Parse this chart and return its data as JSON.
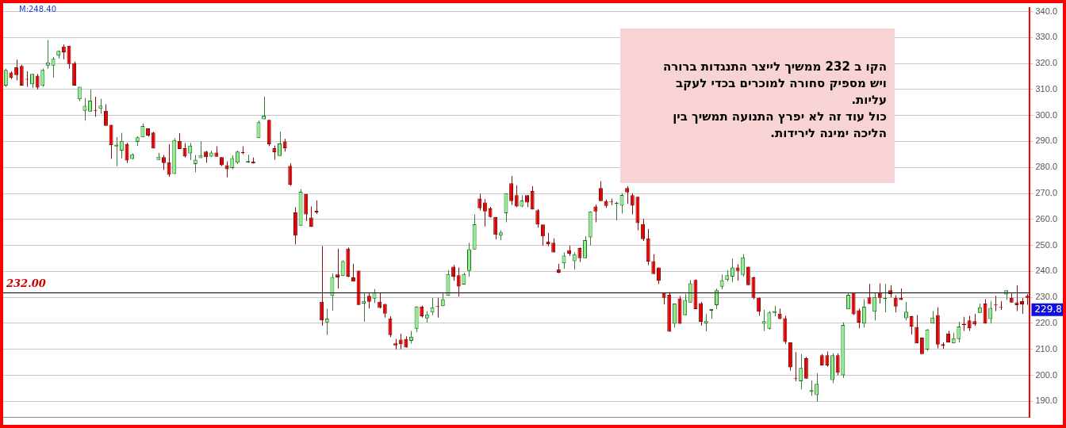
{
  "chart_data": {
    "type": "candlestick",
    "categories": [
      null,
      null,
      null,
      null,
      null,
      null,
      null,
      null,
      null,
      null,
      null,
      null,
      null,
      null,
      null,
      null,
      null,
      null,
      null,
      null,
      null,
      null,
      null,
      null,
      null,
      null,
      null,
      null,
      null,
      null,
      null,
      null,
      null,
      null,
      null,
      null,
      null,
      null,
      null,
      null,
      null,
      null,
      null,
      null,
      null,
      null,
      null,
      null,
      null,
      null,
      null,
      null,
      null,
      null,
      null,
      null,
      null,
      null,
      null,
      null,
      null,
      null,
      null,
      null,
      null,
      null,
      null,
      null,
      null,
      null,
      null,
      null,
      null,
      null,
      null,
      null,
      null,
      null,
      null,
      null,
      null,
      null,
      null,
      null,
      null,
      null,
      null,
      null,
      null,
      null,
      null,
      null,
      null,
      null,
      null,
      null,
      null,
      null,
      null,
      null,
      null,
      null,
      null,
      null,
      null,
      null,
      null,
      null,
      null,
      null,
      null,
      null,
      null,
      null,
      null,
      null,
      null,
      null,
      null,
      null,
      null,
      null,
      null,
      null,
      null,
      null,
      null,
      null,
      null,
      null,
      null,
      null,
      null,
      null,
      null,
      null,
      null,
      null,
      null,
      null,
      null,
      null,
      null,
      null,
      null,
      null,
      null,
      null,
      null,
      null,
      null,
      null,
      null,
      null,
      null,
      null,
      null,
      null,
      null,
      null,
      null,
      null,
      null,
      null,
      null,
      null,
      null,
      null,
      null,
      null,
      null,
      null,
      null,
      null,
      null,
      null,
      null,
      null,
      null,
      null,
      null,
      null,
      null,
      null,
      null,
      null,
      null,
      null,
      null,
      null,
      null,
      null,
      null,
      null,
      null
    ],
    "ohlc": [
      [
        311.5,
        318,
        311,
        317.5
      ],
      [
        316.5,
        317,
        314,
        314.5
      ],
      [
        318.5,
        321.5,
        313.5,
        315.5
      ],
      [
        319,
        319.5,
        311.5,
        311.5
      ],
      [
        314,
        317,
        311,
        313.8
      ],
      [
        312,
        316,
        310.5,
        316
      ],
      [
        315.3,
        316,
        310,
        310.7
      ],
      [
        311.4,
        318,
        311,
        317.5
      ],
      [
        319.2,
        329,
        318,
        320.4
      ],
      [
        319.2,
        322.5,
        314.6,
        321.8
      ],
      [
        323,
        325,
        322,
        324.8
      ],
      [
        326.5,
        327.3,
        321.6,
        324.3
      ],
      [
        326.8,
        326.8,
        318,
        319.8
      ],
      [
        320.2,
        320.8,
        311.5,
        311.5
      ],
      [
        306.2,
        311,
        305.5,
        311
      ],
      [
        301.8,
        306.7,
        298,
        303.7
      ],
      [
        301.5,
        310,
        301.4,
        305.7
      ],
      [
        302,
        307.2,
        299.5,
        301.8
      ],
      [
        302.6,
        306.4,
        300.7,
        303.8
      ],
      [
        301.8,
        304.3,
        296,
        296
      ],
      [
        296.4,
        296.4,
        283.3,
        288.6
      ],
      [
        288.1,
        291.7,
        280.5,
        288.8
      ],
      [
        286.5,
        293.3,
        283.5,
        290.2
      ],
      [
        289,
        289.5,
        281.7,
        282.7
      ],
      [
        283.3,
        285.4,
        283.1,
        285
      ],
      [
        289.8,
        292,
        288.3,
        291.6
      ],
      [
        291.6,
        296.9,
        291.6,
        295.9
      ],
      [
        295,
        295,
        291.8,
        292.3
      ],
      [
        293.4,
        293.7,
        287.3,
        287.3
      ],
      [
        282.9,
        285.6,
        282.9,
        284.1
      ],
      [
        284,
        284.8,
        279,
        281.7
      ],
      [
        282,
        289,
        276.4,
        277.2
      ],
      [
        277.5,
        291.2,
        277.5,
        290.5
      ],
      [
        290.2,
        293.2,
        287.1,
        287.1
      ],
      [
        287.4,
        289.4,
        283.8,
        284.3
      ],
      [
        285.4,
        289.4,
        282.8,
        288.4
      ],
      [
        281.3,
        284.8,
        278.2,
        283
      ],
      [
        283.6,
        290,
        283.6,
        284.7
      ],
      [
        286.1,
        286.4,
        281.8,
        284
      ],
      [
        284.2,
        286.4,
        284,
        285.7
      ],
      [
        285.7,
        288.1,
        284.1,
        284.1
      ],
      [
        284,
        284,
        280.5,
        280.8
      ],
      [
        280.8,
        282.3,
        276.2,
        279.3
      ],
      [
        279.8,
        284.7,
        279.3,
        283.6
      ],
      [
        281.8,
        286.5,
        281.3,
        286.1
      ],
      [
        285.9,
        288.1,
        285.1,
        285.5
      ],
      [
        281.8,
        284.9,
        281.8,
        282.4
      ],
      [
        282.3,
        283.8,
        281.5,
        281.5
      ],
      [
        291.3,
        298.1,
        291.3,
        297.4
      ],
      [
        298.5,
        307.3,
        298.5,
        299.9
      ],
      [
        298.3,
        298.3,
        288.2,
        288.9
      ],
      [
        287.4,
        288.4,
        283,
        285.9
      ],
      [
        284.4,
        293.8,
        284.4,
        289.2
      ],
      [
        290,
        291,
        286.1,
        287.4
      ],
      [
        280.6,
        281.6,
        272.9,
        273.4
      ],
      [
        262.7,
        264.7,
        250.4,
        253.8
      ],
      [
        257.6,
        271.6,
        257.6,
        270.6
      ],
      [
        269.8,
        269.8,
        259.4,
        261.9
      ],
      [
        260.7,
        265,
        257.1,
        257.1
      ],
      [
        263.4,
        267.3,
        262.1,
        262.7
      ],
      [
        228.3,
        249.7,
        219.1,
        221.1
      ],
      [
        220.4,
        225.7,
        215.5,
        221.8
      ],
      [
        230.6,
        239.2,
        224.9,
        237.8
      ],
      [
        238.8,
        248.7,
        233.4,
        237.7
      ],
      [
        238.2,
        244.3,
        238.2,
        243.9
      ],
      [
        248.7,
        249.2,
        237.8,
        238
      ],
      [
        237.7,
        242.9,
        236.1,
        236.1
      ],
      [
        240.3,
        240.3,
        227.1,
        227.1
      ],
      [
        227.6,
        231.9,
        220.6,
        228.6
      ],
      [
        230.6,
        231.9,
        225.7,
        228.3
      ],
      [
        229.5,
        233.2,
        227.8,
        231.8
      ],
      [
        228.3,
        231.9,
        225.7,
        225.9
      ],
      [
        227.5,
        227.5,
        222.2,
        223.7
      ],
      [
        221.9,
        222.7,
        214.7,
        215.5
      ],
      [
        212.3,
        214,
        210,
        211.5
      ],
      [
        213.7,
        216,
        210,
        212
      ],
      [
        214,
        215,
        210.7,
        210.7
      ],
      [
        213.3,
        217.1,
        212.3,
        214.9
      ],
      [
        217.9,
        226.5,
        216.6,
        226.5
      ],
      [
        226.5,
        226.8,
        222.2,
        222.7
      ],
      [
        221.9,
        224.7,
        220.3,
        223.4
      ],
      [
        224.2,
        229.8,
        223.2,
        226.2
      ],
      [
        226.5,
        229.8,
        222.2,
        226.3
      ],
      [
        226.6,
        231.8,
        226.6,
        229.3
      ],
      [
        230.6,
        240.5,
        230.6,
        239
      ],
      [
        241.8,
        242.5,
        236.4,
        238
      ],
      [
        238.5,
        241.5,
        230.3,
        234.2
      ],
      [
        234.9,
        239.5,
        234.9,
        239
      ],
      [
        240.2,
        251,
        238,
        248.5
      ],
      [
        248.4,
        261.9,
        248.4,
        258.1
      ],
      [
        268,
        269.9,
        263.5,
        264.3
      ],
      [
        266.5,
        267.8,
        257.3,
        263.1
      ],
      [
        264.2,
        264.8,
        260.7,
        260.9
      ],
      [
        260.9,
        260.9,
        252.3,
        254.1
      ],
      [
        253.8,
        255.8,
        252,
        255
      ],
      [
        262.4,
        270.1,
        258.9,
        270.1
      ],
      [
        273.9,
        276.7,
        265.5,
        267
      ],
      [
        269.3,
        273.1,
        264.7,
        265
      ],
      [
        265,
        269.3,
        264.7,
        267.3
      ],
      [
        269.3,
        269.3,
        264.7,
        266.5
      ],
      [
        270.9,
        272.8,
        263.8,
        263.8
      ],
      [
        263.5,
        264,
        256.8,
        258
      ],
      [
        258,
        258,
        249.9,
        253.5
      ],
      [
        251.4,
        254.8,
        249.7,
        250.5
      ],
      [
        251,
        252.7,
        247.3,
        247.3
      ],
      [
        240.8,
        242.9,
        239.3,
        239.5
      ],
      [
        243.1,
        247.3,
        241,
        246.1
      ],
      [
        248.2,
        249.9,
        245.9,
        246.8
      ],
      [
        243.9,
        247.3,
        240.7,
        246.6
      ],
      [
        249,
        249.2,
        243.6,
        245.1
      ],
      [
        245.1,
        253.5,
        245.1,
        252
      ],
      [
        253.1,
        263.1,
        250,
        263.1
      ],
      [
        265,
        265.7,
        258.9,
        263.1
      ],
      [
        272.1,
        274.7,
        267,
        267
      ],
      [
        267,
        267.7,
        264.5,
        265.2
      ],
      [
        266.9,
        268,
        265.5,
        266.6
      ],
      [
        266,
        266.8,
        259.6,
        266.4
      ],
      [
        265.3,
        270.1,
        262.2,
        269.4
      ],
      [
        272.1,
        272.8,
        266,
        270.4
      ],
      [
        269.3,
        270.1,
        261.9,
        265.3
      ],
      [
        268.7,
        268.7,
        255.8,
        258.6
      ],
      [
        258.2,
        260.2,
        251.7,
        252.4
      ],
      [
        252.7,
        256.3,
        242.4,
        243.8
      ],
      [
        243.9,
        246.6,
        239,
        239
      ],
      [
        241.5,
        241.5,
        235.1,
        236.4
      ],
      [
        231.9,
        231.9,
        227.3,
        229.8
      ],
      [
        231,
        232,
        216.8,
        216.8
      ],
      [
        219.8,
        227.6,
        218.4,
        227.6
      ],
      [
        229.6,
        230.6,
        219.8,
        219.8
      ],
      [
        223.1,
        231.3,
        223.1,
        229
      ],
      [
        228,
        236.7,
        228,
        235.4
      ],
      [
        236.7,
        236.9,
        225.5,
        225.5
      ],
      [
        227.8,
        228.3,
        219.1,
        220.6
      ],
      [
        220,
        223.7,
        216.9,
        221
      ],
      [
        224.9,
        225.5,
        221.7,
        225.5
      ],
      [
        227,
        233.4,
        225.5,
        232.7
      ],
      [
        234.1,
        238.8,
        233.1,
        236.6
      ],
      [
        236.7,
        240.5,
        236.1,
        238.5
      ],
      [
        238,
        244.9,
        235.9,
        241.5
      ],
      [
        241.5,
        242.8,
        236.4,
        240.2
      ],
      [
        238.7,
        246.6,
        238,
        245.4
      ],
      [
        241.8,
        241.8,
        234.7,
        234.7
      ],
      [
        237.7,
        238,
        229.3,
        229.8
      ],
      [
        229.8,
        230,
        222.9,
        224.5
      ],
      [
        219.8,
        225.2,
        217.1,
        220.8
      ],
      [
        217.9,
        224.7,
        217.6,
        224.2
      ],
      [
        224,
        226.7,
        222.7,
        224.7
      ],
      [
        223.7,
        225.7,
        221.6,
        221.7
      ],
      [
        222,
        223,
        212,
        212.8
      ],
      [
        212.7,
        212.7,
        201.8,
        203.1
      ],
      [
        198.8,
        208.9,
        197.7,
        198.7
      ],
      [
        197.7,
        208.2,
        194.6,
        202.8
      ],
      [
        206.6,
        207.1,
        198.7,
        198.7
      ],
      [
        193.6,
        198,
        192.1,
        194.3
      ],
      [
        192.4,
        200.8,
        189.8,
        196.7
      ],
      [
        207.7,
        208.2,
        203.8,
        203.8
      ],
      [
        207.7,
        209.2,
        203.3,
        203.8
      ],
      [
        198.2,
        208.5,
        197,
        207.7
      ],
      [
        207.7,
        208.5,
        200,
        201
      ],
      [
        200,
        220.4,
        199,
        219.4
      ],
      [
        225.4,
        231.8,
        225.4,
        231
      ],
      [
        231.8,
        231.8,
        223.2,
        223.5
      ],
      [
        225,
        225.7,
        218.1,
        220.3
      ],
      [
        219.9,
        229.3,
        218.4,
        226.4
      ],
      [
        230,
        235.2,
        227.5,
        227.5
      ],
      [
        224.5,
        231.6,
        221.1,
        230.1
      ],
      [
        231.8,
        235.4,
        227.6,
        229.8
      ],
      [
        229.4,
        235.1,
        224.2,
        229.8
      ],
      [
        232.7,
        234.7,
        230,
        231.3
      ],
      [
        229.8,
        230.8,
        224.2,
        226.5
      ],
      [
        229.8,
        233.4,
        229,
        229
      ],
      [
        222,
        228.3,
        221.1,
        224.5
      ],
      [
        222.7,
        222.9,
        215.7,
        218.8
      ],
      [
        218.6,
        223.2,
        212.3,
        212.3
      ],
      [
        214.5,
        214.5,
        208.2,
        208.2
      ],
      [
        209.9,
        217.8,
        209.4,
        217.6
      ],
      [
        219.9,
        224.7,
        219.9,
        222.2
      ],
      [
        223.2,
        226.2,
        210.4,
        211.8
      ],
      [
        212,
        212.7,
        210.2,
        211.3
      ],
      [
        216,
        217.1,
        212.7,
        212.7
      ],
      [
        212.3,
        216.4,
        212.3,
        214.3
      ],
      [
        214,
        220.6,
        212.7,
        218.8
      ],
      [
        219.8,
        222.5,
        217.1,
        219.4
      ],
      [
        221.1,
        222.9,
        217.1,
        218.1
      ],
      [
        220.8,
        223.7,
        219.1,
        219.6
      ],
      [
        224,
        227.6,
        224,
        226.2
      ],
      [
        227.6,
        229.3,
        219.9,
        219.9
      ],
      [
        221.7,
        228.6,
        219.9,
        225.9
      ],
      [
        227,
        230.6,
        224.7,
        226.9
      ],
      [
        226.1,
        228.6,
        225.2,
        226
      ],
      [
        231.1,
        232.7,
        229,
        232.7
      ],
      [
        229.8,
        231.8,
        228,
        228
      ],
      [
        228.1,
        234.7,
        224.7,
        227
      ],
      [
        228.5,
        229.8,
        223.7,
        227.3
      ],
      [
        230.6,
        231.3,
        227.1,
        229.8
      ]
    ],
    "ylim": [
      184,
      341.5
    ],
    "yticks": [
      {
        "value": 190,
        "label": "190.0"
      },
      {
        "value": 200,
        "label": "200.0"
      },
      {
        "value": 210,
        "label": "210.0"
      },
      {
        "value": 220,
        "label": "220.0"
      },
      {
        "value": 230,
        "label": "230.0"
      },
      {
        "value": 240,
        "label": "240.0"
      },
      {
        "value": 250,
        "label": "250.0"
      },
      {
        "value": 260,
        "label": "260.0"
      },
      {
        "value": 270,
        "label": "270.0"
      },
      {
        "value": 280,
        "label": "280.0"
      },
      {
        "value": 290,
        "label": "290.0"
      },
      {
        "value": 300,
        "label": "300.0"
      },
      {
        "value": 310,
        "label": "310.0"
      },
      {
        "value": 320,
        "label": "320.0"
      },
      {
        "value": 330,
        "label": "330.0"
      },
      {
        "value": 340,
        "label": "340.0"
      }
    ],
    "ref_lines": [
      {
        "axis": "y",
        "value": 232,
        "label": "232.00",
        "color": "#000000"
      }
    ],
    "annotations": [
      "M:248.40",
      "הקו ב 232 ממשיך לייצר התנגדות ברורה\nויש מספיק סחורה למוכרים בכדי לעקב\nעליות.\nכול עוד זה לא יפרץ התנועה תמשיך בין\nהליכה ימינה לירידות.",
      "229.8"
    ],
    "grid": "y",
    "tick_labels": "y",
    "legend": false
  }
}
